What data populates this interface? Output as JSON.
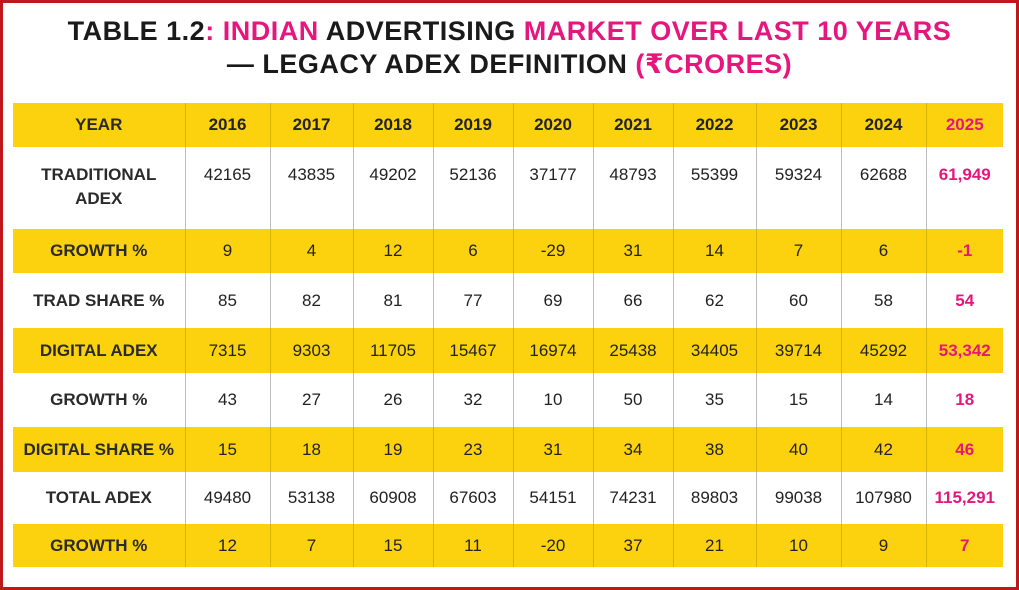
{
  "title": {
    "prefix": "TABLE 1.2",
    "colon": ":",
    "part1": " INDIAN ",
    "part2": "ADVERTISING",
    "part3": " MARKET OVER LAST 10 YEARS",
    "part4": "— LEGACY ADEX DEFINITION",
    "part5": " (₹CRORES)"
  },
  "colors": {
    "accent_pink": "#e6167e",
    "row_yellow": "#fcd20f",
    "border_red": "#c0171c"
  },
  "chart_data": {
    "type": "table",
    "columns": [
      "YEAR",
      "2016",
      "2017",
      "2018",
      "2019",
      "2020",
      "2021",
      "2022",
      "2023",
      "2024",
      "2025"
    ],
    "rows": [
      {
        "label": "TRADITIONAL ADEX",
        "label_lines": [
          "TRADITIONAL",
          "ADEX"
        ],
        "values": [
          "42165",
          "43835",
          "49202",
          "52136",
          "37177",
          "48793",
          "55399",
          "59324",
          "62688",
          "61,949"
        ]
      },
      {
        "label": "GROWTH %",
        "values": [
          "9",
          "4",
          "12",
          "6",
          "-29",
          "31",
          "14",
          "7",
          "6",
          "-1"
        ]
      },
      {
        "label": "TRAD SHARE %",
        "values": [
          "85",
          "82",
          "81",
          "77",
          "69",
          "66",
          "62",
          "60",
          "58",
          "54"
        ]
      },
      {
        "label": "DIGITAL ADEX",
        "values": [
          "7315",
          "9303",
          "11705",
          "15467",
          "16974",
          "25438",
          "34405",
          "39714",
          "45292",
          "53,342"
        ]
      },
      {
        "label": "GROWTH %",
        "values": [
          "43",
          "27",
          "26",
          "32",
          "10",
          "50",
          "35",
          "15",
          "14",
          "18"
        ]
      },
      {
        "label": "DIGITAL SHARE %",
        "values": [
          "15",
          "18",
          "19",
          "23",
          "31",
          "34",
          "38",
          "40",
          "42",
          "46"
        ]
      },
      {
        "label": "TOTAL ADEX",
        "values": [
          "49480",
          "53138",
          "60908",
          "67603",
          "54151",
          "74231",
          "89803",
          "99038",
          "107980",
          "115,291"
        ]
      },
      {
        "label": "GROWTH %",
        "values": [
          "12",
          "7",
          "15",
          "11",
          "-20",
          "37",
          "21",
          "10",
          "9",
          "7"
        ]
      }
    ]
  }
}
